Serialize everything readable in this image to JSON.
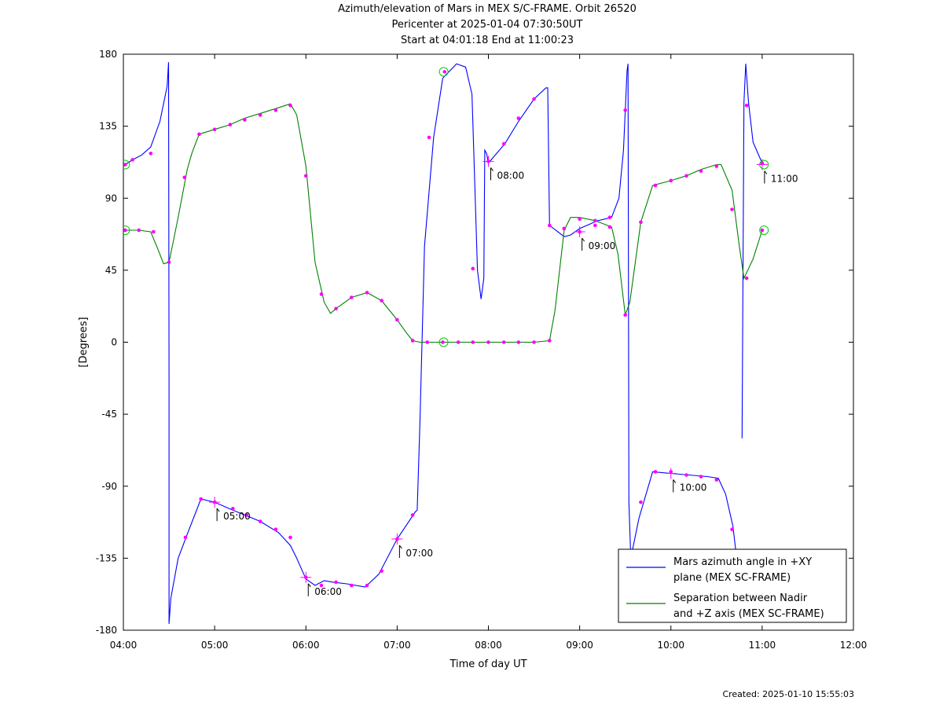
{
  "title": {
    "line1": "Azimuth/elevation of Mars in MEX S/C-FRAME.  Orbit 26520",
    "line2": "Pericenter at 2025-01-04 07:30:50UT",
    "line3": "Start at 04:01:18 End at 11:00:23"
  },
  "created": "Created: 2025-01-10 15:55:03",
  "chart_data": {
    "type": "line",
    "xlabel": "Time of day UT",
    "ylabel": "[Degrees]",
    "xlim": [
      4.0,
      12.0
    ],
    "ylim": [
      -180,
      180
    ],
    "x_unit": "hours UT",
    "xticks": [
      4,
      5,
      6,
      7,
      8,
      9,
      10,
      11,
      12
    ],
    "xtick_labels": [
      "04:00",
      "05:00",
      "06:00",
      "07:00",
      "08:00",
      "09:00",
      "10:00",
      "11:00",
      "12:00"
    ],
    "yticks": [
      180,
      135,
      90,
      45,
      0,
      -45,
      -90,
      -135,
      -180
    ],
    "ytick_labels": [
      "180",
      "135",
      "90",
      "45",
      "0",
      "-45",
      "-90",
      "-135",
      "-180"
    ],
    "legend_position": "bottom-right",
    "series": [
      {
        "name": "Mars azimuth angle in +XY plane (MEX SC-FRAME)",
        "legend_lines": [
          "Mars azimuth angle in +XY",
          "plane (MEX SC-FRAME)"
        ],
        "color": "#0000ff",
        "segments": [
          [
            [
              4.02,
              111
            ],
            [
              4.1,
              114
            ],
            [
              4.2,
              117
            ],
            [
              4.3,
              122
            ],
            [
              4.4,
              138
            ],
            [
              4.48,
              160
            ],
            [
              4.495,
              175
            ],
            [
              4.5,
              -20
            ],
            [
              4.5,
              -176
            ],
            [
              4.52,
              -160
            ],
            [
              4.6,
              -135
            ],
            [
              4.7,
              -120
            ],
            [
              4.85,
              -98
            ],
            [
              5.0,
              -100
            ],
            [
              5.2,
              -105
            ],
            [
              5.5,
              -112
            ],
            [
              5.7,
              -119
            ],
            [
              5.83,
              -127
            ],
            [
              5.9,
              -135
            ],
            [
              6.0,
              -148
            ],
            [
              6.1,
              -152
            ],
            [
              6.2,
              -149
            ],
            [
              6.3,
              -150
            ],
            [
              6.45,
              -151
            ],
            [
              6.65,
              -153
            ],
            [
              6.8,
              -145
            ],
            [
              7.0,
              -123
            ],
            [
              7.2,
              -106
            ],
            [
              7.22,
              -105
            ],
            [
              7.25,
              -50
            ],
            [
              7.3,
              60
            ],
            [
              7.4,
              128
            ],
            [
              7.5,
              165
            ],
            [
              7.65,
              174
            ],
            [
              7.75,
              172
            ],
            [
              7.82,
              155
            ],
            [
              7.88,
              45
            ],
            [
              7.92,
              27
            ],
            [
              7.95,
              40
            ],
            [
              7.96,
              120
            ],
            [
              7.98,
              118
            ],
            [
              8.0,
              112
            ],
            [
              8.18,
              124
            ],
            [
              8.33,
              138
            ],
            [
              8.5,
              152
            ],
            [
              8.63,
              159
            ],
            [
              8.65,
              159
            ],
            [
              8.67,
              73
            ],
            [
              8.83,
              66
            ],
            [
              8.9,
              67
            ],
            [
              9.0,
              71
            ],
            [
              9.2,
              76
            ],
            [
              9.35,
              78
            ],
            [
              9.43,
              90
            ],
            [
              9.48,
              120
            ],
            [
              9.52,
              170
            ],
            [
              9.53,
              174
            ],
            [
              9.54,
              -100
            ],
            [
              9.56,
              -135
            ],
            [
              9.65,
              -110
            ],
            [
              9.8,
              -81
            ],
            [
              10.0,
              -82
            ],
            [
              10.2,
              -83
            ],
            [
              10.4,
              -84
            ],
            [
              10.52,
              -85
            ],
            [
              10.6,
              -95
            ],
            [
              10.68,
              -115
            ],
            [
              10.72,
              -135
            ]
          ],
          [
            [
              10.78,
              -60
            ],
            [
              10.8,
              150
            ],
            [
              10.82,
              174
            ],
            [
              10.85,
              150
            ],
            [
              10.9,
              125
            ],
            [
              11.0,
              112
            ],
            [
              11.02,
              111
            ]
          ]
        ],
        "marker_points": [
          [
            4.02,
            111
          ],
          [
            4.1,
            114
          ],
          [
            4.3,
            118
          ],
          [
            4.68,
            -122
          ],
          [
            4.85,
            -98
          ],
          [
            5.0,
            -100
          ],
          [
            5.2,
            -104
          ],
          [
            5.35,
            -108
          ],
          [
            5.5,
            -112
          ],
          [
            5.67,
            -117
          ],
          [
            5.83,
            -122
          ],
          [
            6.0,
            -147
          ],
          [
            6.17,
            -152
          ],
          [
            6.33,
            -150
          ],
          [
            6.5,
            -152
          ],
          [
            6.67,
            -152
          ],
          [
            6.83,
            -143
          ],
          [
            7.0,
            -123
          ],
          [
            7.17,
            -108
          ],
          [
            7.35,
            128
          ],
          [
            7.52,
            169
          ],
          [
            7.83,
            46
          ],
          [
            8.0,
            113
          ],
          [
            8.17,
            124
          ],
          [
            8.33,
            140
          ],
          [
            8.5,
            152
          ],
          [
            8.67,
            73
          ],
          [
            8.83,
            71
          ],
          [
            9.0,
            77
          ],
          [
            9.17,
            76
          ],
          [
            9.33,
            78
          ],
          [
            9.5,
            145
          ],
          [
            9.67,
            -100
          ],
          [
            9.83,
            -81
          ],
          [
            10.0,
            -81
          ],
          [
            10.17,
            -83
          ],
          [
            10.33,
            -84
          ],
          [
            10.5,
            -86
          ],
          [
            10.67,
            -117
          ],
          [
            10.83,
            148
          ],
          [
            11.0,
            112
          ]
        ]
      },
      {
        "name": "Separation between Nadir and +Z axis (MEX SC-FRAME)",
        "legend_lines": [
          "Separation between Nadir",
          "and +Z axis (MEX SC-FRAME)"
        ],
        "color": "#008000",
        "segments": [
          [
            [
              4.02,
              70
            ],
            [
              4.17,
              70
            ],
            [
              4.3,
              69
            ],
            [
              4.38,
              58
            ],
            [
              4.44,
              49
            ],
            [
              4.5,
              50
            ],
            [
              4.6,
              78
            ],
            [
              4.7,
              108
            ],
            [
              4.75,
              118
            ],
            [
              4.83,
              130
            ],
            [
              5.0,
              133
            ],
            [
              5.17,
              136
            ],
            [
              5.33,
              140
            ],
            [
              5.5,
              143
            ],
            [
              5.67,
              146
            ],
            [
              5.83,
              149
            ],
            [
              5.9,
              142
            ],
            [
              6.0,
              110
            ],
            [
              6.1,
              50
            ],
            [
              6.2,
              25
            ],
            [
              6.27,
              18
            ],
            [
              6.33,
              21
            ],
            [
              6.5,
              28
            ],
            [
              6.67,
              31
            ],
            [
              6.83,
              26
            ],
            [
              7.0,
              14
            ],
            [
              7.1,
              6
            ],
            [
              7.17,
              1
            ],
            [
              7.25,
              0
            ],
            [
              7.5,
              0
            ],
            [
              7.83,
              0
            ],
            [
              8.0,
              0
            ],
            [
              8.33,
              0
            ],
            [
              8.5,
              0
            ],
            [
              8.67,
              1
            ],
            [
              8.73,
              20
            ],
            [
              8.83,
              70
            ],
            [
              8.9,
              78
            ],
            [
              9.0,
              78
            ],
            [
              9.17,
              76
            ],
            [
              9.35,
              72
            ],
            [
              9.42,
              55
            ],
            [
              9.5,
              17
            ],
            [
              9.55,
              25
            ],
            [
              9.67,
              75
            ],
            [
              9.8,
              98
            ],
            [
              10.0,
              101
            ],
            [
              10.17,
              104
            ],
            [
              10.33,
              108
            ],
            [
              10.5,
              111
            ],
            [
              10.55,
              111
            ],
            [
              10.67,
              95
            ],
            [
              10.75,
              60
            ],
            [
              10.8,
              40
            ],
            [
              10.9,
              52
            ],
            [
              11.0,
              70
            ],
            [
              11.02,
              70
            ]
          ]
        ],
        "marker_points": [
          [
            4.02,
            70
          ],
          [
            4.17,
            70
          ],
          [
            4.33,
            69
          ],
          [
            4.5,
            50
          ],
          [
            4.67,
            103
          ],
          [
            4.83,
            130
          ],
          [
            5.0,
            133
          ],
          [
            5.17,
            136
          ],
          [
            5.33,
            139
          ],
          [
            5.5,
            142
          ],
          [
            5.67,
            145
          ],
          [
            5.83,
            148
          ],
          [
            6.0,
            104
          ],
          [
            6.17,
            30
          ],
          [
            6.33,
            21
          ],
          [
            6.5,
            28
          ],
          [
            6.67,
            31
          ],
          [
            6.83,
            26
          ],
          [
            7.0,
            14
          ],
          [
            7.17,
            1
          ],
          [
            7.33,
            0
          ],
          [
            7.5,
            0
          ],
          [
            7.67,
            0
          ],
          [
            7.83,
            0
          ],
          [
            8.0,
            0
          ],
          [
            8.17,
            0
          ],
          [
            8.33,
            0
          ],
          [
            8.5,
            0
          ],
          [
            8.67,
            1
          ],
          [
            8.83,
            71
          ],
          [
            9.0,
            69
          ],
          [
            9.17,
            73
          ],
          [
            9.33,
            72
          ],
          [
            9.5,
            17
          ],
          [
            9.67,
            75
          ],
          [
            9.83,
            98
          ],
          [
            10.0,
            101
          ],
          [
            10.17,
            104
          ],
          [
            10.33,
            107
          ],
          [
            10.5,
            110
          ],
          [
            10.67,
            83
          ],
          [
            10.83,
            40
          ],
          [
            11.0,
            70
          ]
        ]
      }
    ],
    "start_points": [
      [
        4.02,
        111
      ],
      [
        4.02,
        70
      ]
    ],
    "end_points": [
      [
        11.02,
        111
      ],
      [
        11.02,
        70
      ]
    ],
    "pericenter_points": [
      [
        7.51,
        169
      ],
      [
        7.51,
        0
      ]
    ],
    "hour_labels": [
      {
        "label": "05:00",
        "x": 5.0,
        "y": -100
      },
      {
        "label": "06:00",
        "x": 6.0,
        "y": -147
      },
      {
        "label": "07:00",
        "x": 7.0,
        "y": -123
      },
      {
        "label": "08:00",
        "x": 8.0,
        "y": 113
      },
      {
        "label": "09:00",
        "x": 9.0,
        "y": 69
      },
      {
        "label": "10:00",
        "x": 10.0,
        "y": -82
      },
      {
        "label": "11:00",
        "x": 11.0,
        "y": 111
      }
    ]
  }
}
